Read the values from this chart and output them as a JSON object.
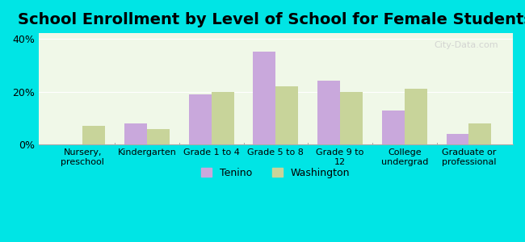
{
  "title": "School Enrollment by Level of School for Female Students",
  "categories": [
    "Nursery,\npreschool",
    "Kindergarten",
    "Grade 1 to 4",
    "Grade 5 to 8",
    "Grade 9 to\n12",
    "College\nundergrad",
    "Graduate or\nprofessional"
  ],
  "tenino": [
    0,
    8,
    19,
    35,
    24,
    13,
    4
  ],
  "washington": [
    7,
    6,
    20,
    22,
    20,
    21,
    8
  ],
  "tenino_color": "#c9a8dc",
  "washington_color": "#c8d49a",
  "background_color": "#00e5e5",
  "plot_bg_start": "#f0f8e8",
  "plot_bg_end": "#ffffff",
  "ylim": [
    0,
    42
  ],
  "yticks": [
    0,
    20,
    40
  ],
  "ytick_labels": [
    "0%",
    "20%",
    "40%"
  ],
  "bar_width": 0.35,
  "title_fontsize": 14,
  "legend_labels": [
    "Tenino",
    "Washington"
  ],
  "watermark": "City-Data.com"
}
